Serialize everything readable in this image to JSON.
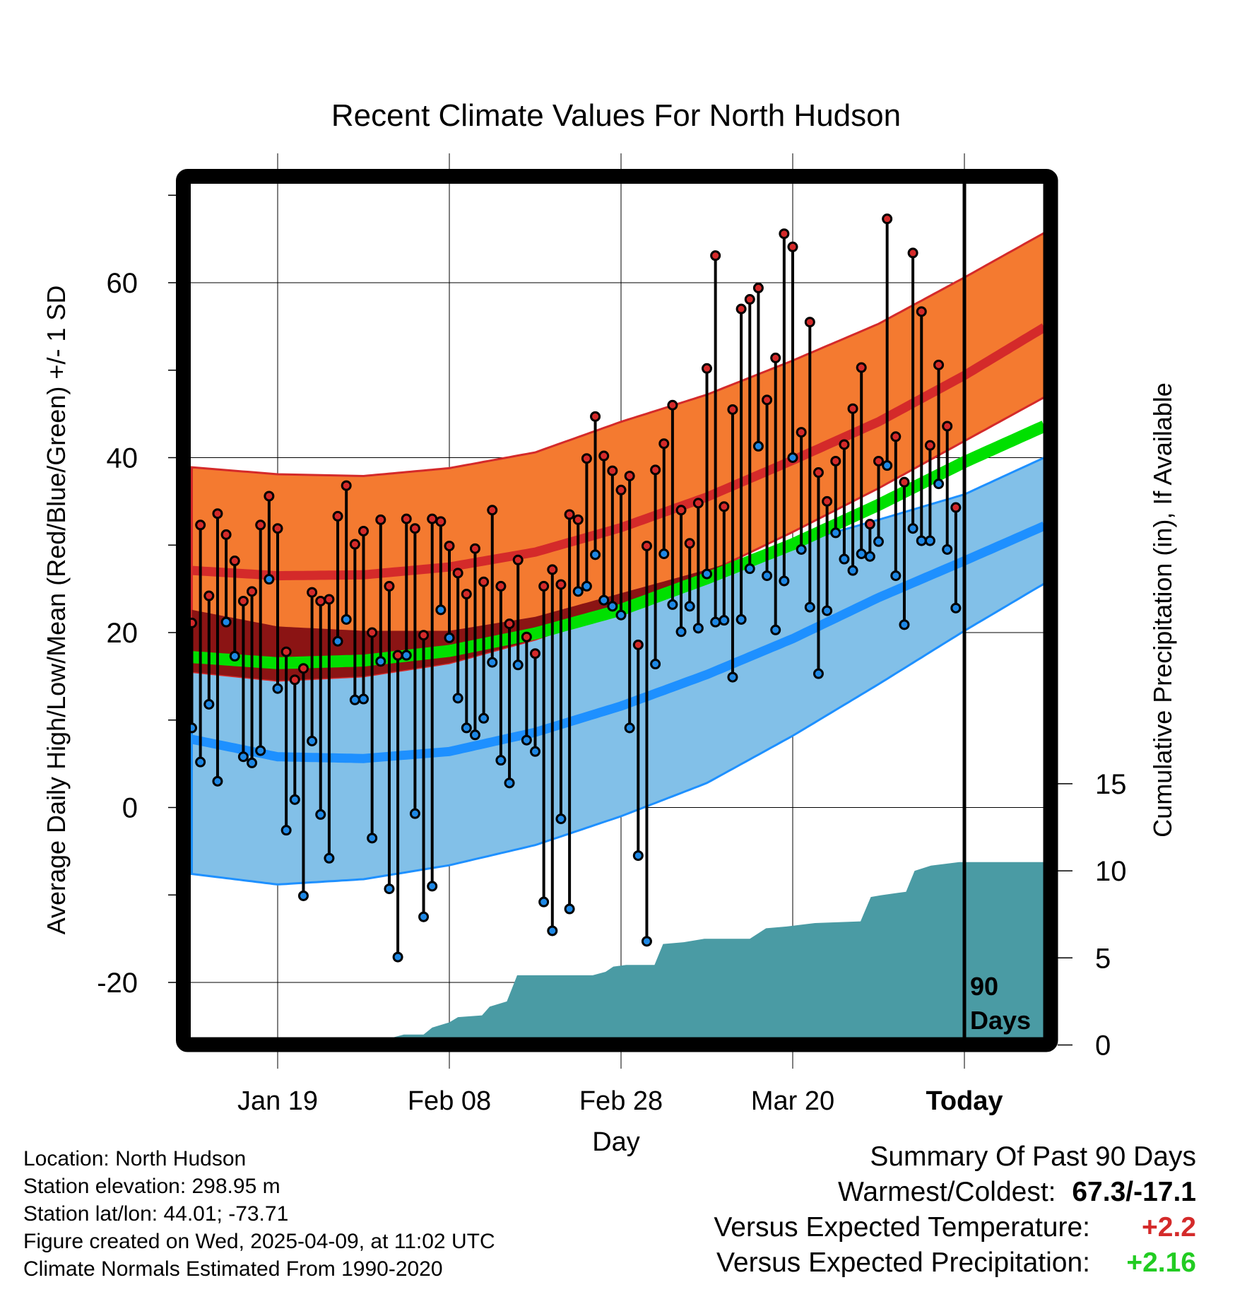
{
  "chart_data": {
    "type": "line",
    "title": "Recent Climate Values For North Hudson",
    "xlabel": "Day",
    "ylabel": "Average Daily High/Low/Mean (Red/Blue/Green) +/- 1 SD",
    "y2label": "Cumulative Precipitation (in), If Available",
    "ylim": [
      -26.4,
      71.3
    ],
    "y2lim": [
      0,
      39.3
    ],
    "yticks": [
      "60",
      "40",
      "20",
      "0",
      "-20"
    ],
    "ytick_values": [
      60,
      40,
      20,
      0,
      -20
    ],
    "y2ticks": [
      "15",
      "10",
      "5",
      "0"
    ],
    "y2tick_values": [
      15,
      10,
      5,
      0
    ],
    "xticks": [
      "Jan 19",
      "Feb 08",
      "Feb 28",
      "Mar 20",
      "Today"
    ],
    "xtick_days": [
      10,
      30,
      50,
      70,
      90
    ],
    "xlim_days": [
      0,
      99.3
    ],
    "today_label": [
      "90",
      "Days"
    ],
    "grid": true,
    "daily_high": [
      21.1,
      32.3,
      24.2,
      33.6,
      31.2,
      28.2,
      23.6,
      24.7,
      32.3,
      35.6,
      31.9,
      17.8,
      14.6,
      15.9,
      24.6,
      23.6,
      23.8,
      33.3,
      36.8,
      30.1,
      31.6,
      20.0,
      32.9,
      25.3,
      17.4,
      33.0,
      31.9,
      19.7,
      33.0,
      32.7,
      29.9,
      26.8,
      24.4,
      29.6,
      25.8,
      34.0,
      25.3,
      21.0,
      28.3,
      19.5,
      17.6,
      25.3,
      27.2,
      25.5,
      33.5,
      32.9,
      39.9,
      44.7,
      40.2,
      38.5,
      36.3,
      37.9,
      18.6,
      29.9,
      38.6,
      41.6,
      46.0,
      34.0,
      30.2,
      34.8,
      50.2,
      63.1,
      34.4,
      45.5,
      57.0,
      58.1,
      59.4,
      46.6,
      51.4,
      65.6,
      64.1,
      42.9,
      55.5,
      38.3,
      35.0,
      39.6,
      41.5,
      45.6,
      50.3,
      32.4,
      39.6,
      67.3,
      42.4,
      37.2,
      63.4,
      56.7,
      41.4,
      50.6,
      43.6,
      34.3
    ],
    "daily_low": [
      9.1,
      5.2,
      11.8,
      3.0,
      21.2,
      17.3,
      5.8,
      5.1,
      6.5,
      26.1,
      13.6,
      -2.6,
      0.9,
      -10.1,
      7.6,
      -0.8,
      -5.8,
      19.0,
      21.5,
      12.3,
      12.4,
      -3.5,
      16.7,
      -9.3,
      -17.1,
      17.4,
      -0.7,
      -12.5,
      -9.0,
      22.6,
      19.4,
      12.5,
      9.1,
      8.3,
      10.2,
      16.6,
      5.4,
      2.8,
      16.3,
      7.7,
      6.4,
      -10.8,
      -14.1,
      -1.3,
      -11.6,
      24.7,
      25.3,
      28.9,
      23.7,
      23.0,
      22.0,
      9.1,
      -5.5,
      -15.3,
      16.4,
      29.0,
      23.2,
      20.1,
      23.0,
      20.5,
      26.7,
      21.2,
      21.4,
      14.9,
      21.5,
      27.3,
      41.3,
      26.5,
      20.3,
      25.9,
      40.0,
      29.5,
      22.9,
      15.3,
      22.5,
      31.4,
      28.4,
      27.1,
      29.0,
      28.7,
      30.4,
      39.1,
      26.5,
      20.9,
      31.9,
      30.5,
      30.5,
      37.0,
      29.5,
      22.8
    ],
    "normals": {
      "days": [
        0,
        10,
        20,
        30,
        40,
        50,
        60,
        70,
        80,
        90,
        99.3
      ],
      "high_upper": [
        38.9,
        38.1,
        37.9,
        38.8,
        40.6,
        44.1,
        47.2,
        51.1,
        55.3,
        60.6,
        65.7
      ],
      "high_mean": [
        27.1,
        26.5,
        26.6,
        27.5,
        29.2,
        32.0,
        35.5,
        39.7,
        44.1,
        49.4,
        54.9
      ],
      "high_lower": [
        15.5,
        14.5,
        15.0,
        16.5,
        19.2,
        22.6,
        26.8,
        31.5,
        36.5,
        41.9,
        46.9
      ],
      "mean": [
        17.2,
        16.5,
        16.8,
        17.9,
        19.9,
        22.6,
        26.2,
        30.1,
        34.6,
        39.5,
        43.6
      ],
      "low_upper": [
        22.6,
        20.7,
        20.2,
        20.2,
        21.8,
        24.5,
        27.2,
        30.1,
        32.9,
        35.8,
        40.0
      ],
      "low_mean": [
        7.8,
        5.8,
        5.6,
        6.4,
        8.6,
        11.6,
        15.2,
        19.3,
        24.0,
        28.2,
        32.2
      ],
      "low_lower": [
        -7.6,
        -8.8,
        -8.2,
        -6.6,
        -4.3,
        -1.0,
        2.8,
        8.2,
        14.1,
        20.2,
        25.6
      ]
    },
    "cumulative_precip": [
      [
        0,
        0
      ],
      [
        19.9,
        0
      ],
      [
        23.2,
        0.4
      ],
      [
        24.7,
        0.6
      ],
      [
        27,
        0.6
      ],
      [
        28,
        1.0
      ],
      [
        30,
        1.3
      ],
      [
        31,
        1.6
      ],
      [
        33.8,
        1.7
      ],
      [
        34.7,
        2.2
      ],
      [
        36.7,
        2.5
      ],
      [
        37.9,
        4.0
      ],
      [
        46.7,
        4.0
      ],
      [
        48.2,
        4.2
      ],
      [
        49.1,
        4.5
      ],
      [
        50.6,
        4.6
      ],
      [
        53.9,
        4.6
      ],
      [
        54.9,
        5.8
      ],
      [
        57.3,
        5.9
      ],
      [
        59.7,
        6.1
      ],
      [
        65,
        6.1
      ],
      [
        66.9,
        6.7
      ],
      [
        69.3,
        6.8
      ],
      [
        72.6,
        7.0
      ],
      [
        77.9,
        7.1
      ],
      [
        79.1,
        8.5
      ],
      [
        80.3,
        8.6
      ],
      [
        83.2,
        8.8
      ],
      [
        84.2,
        10.0
      ],
      [
        86.1,
        10.3
      ],
      [
        89.4,
        10.5
      ],
      [
        99.3,
        10.5
      ]
    ],
    "colors": {
      "high_band": "#F47A30",
      "high_line": "#D42A2A",
      "overlap": "#8B1414",
      "mean_line": "#00E000",
      "low_band": "#82C0E8",
      "low_line": "#1E90FF",
      "precip": "#4A9BA4",
      "high_dot": "#D42A2A",
      "low_dot": "#1E88E5"
    }
  },
  "footer": {
    "location": "Location: North Hudson",
    "elevation": "Station elevation: 298.95 m",
    "latlon": "Station lat/lon: 44.01; -73.71",
    "created": "Figure created on Wed, 2025-04-09, at 11:02 UTC",
    "normals": "Climate Normals Estimated From 1990-2020"
  },
  "summary": {
    "heading": "Summary Of Past 90 Days",
    "warmest_label": "Warmest/Coldest:",
    "warmest_value": "67.3/-17.1",
    "temp_label": "Versus Expected Temperature:",
    "temp_value": "+2.2",
    "temp_color": "#D42A2A",
    "precip_label": "Versus Expected Precipitation:",
    "precip_value": "+2.16",
    "precip_color": "#22CC22"
  }
}
